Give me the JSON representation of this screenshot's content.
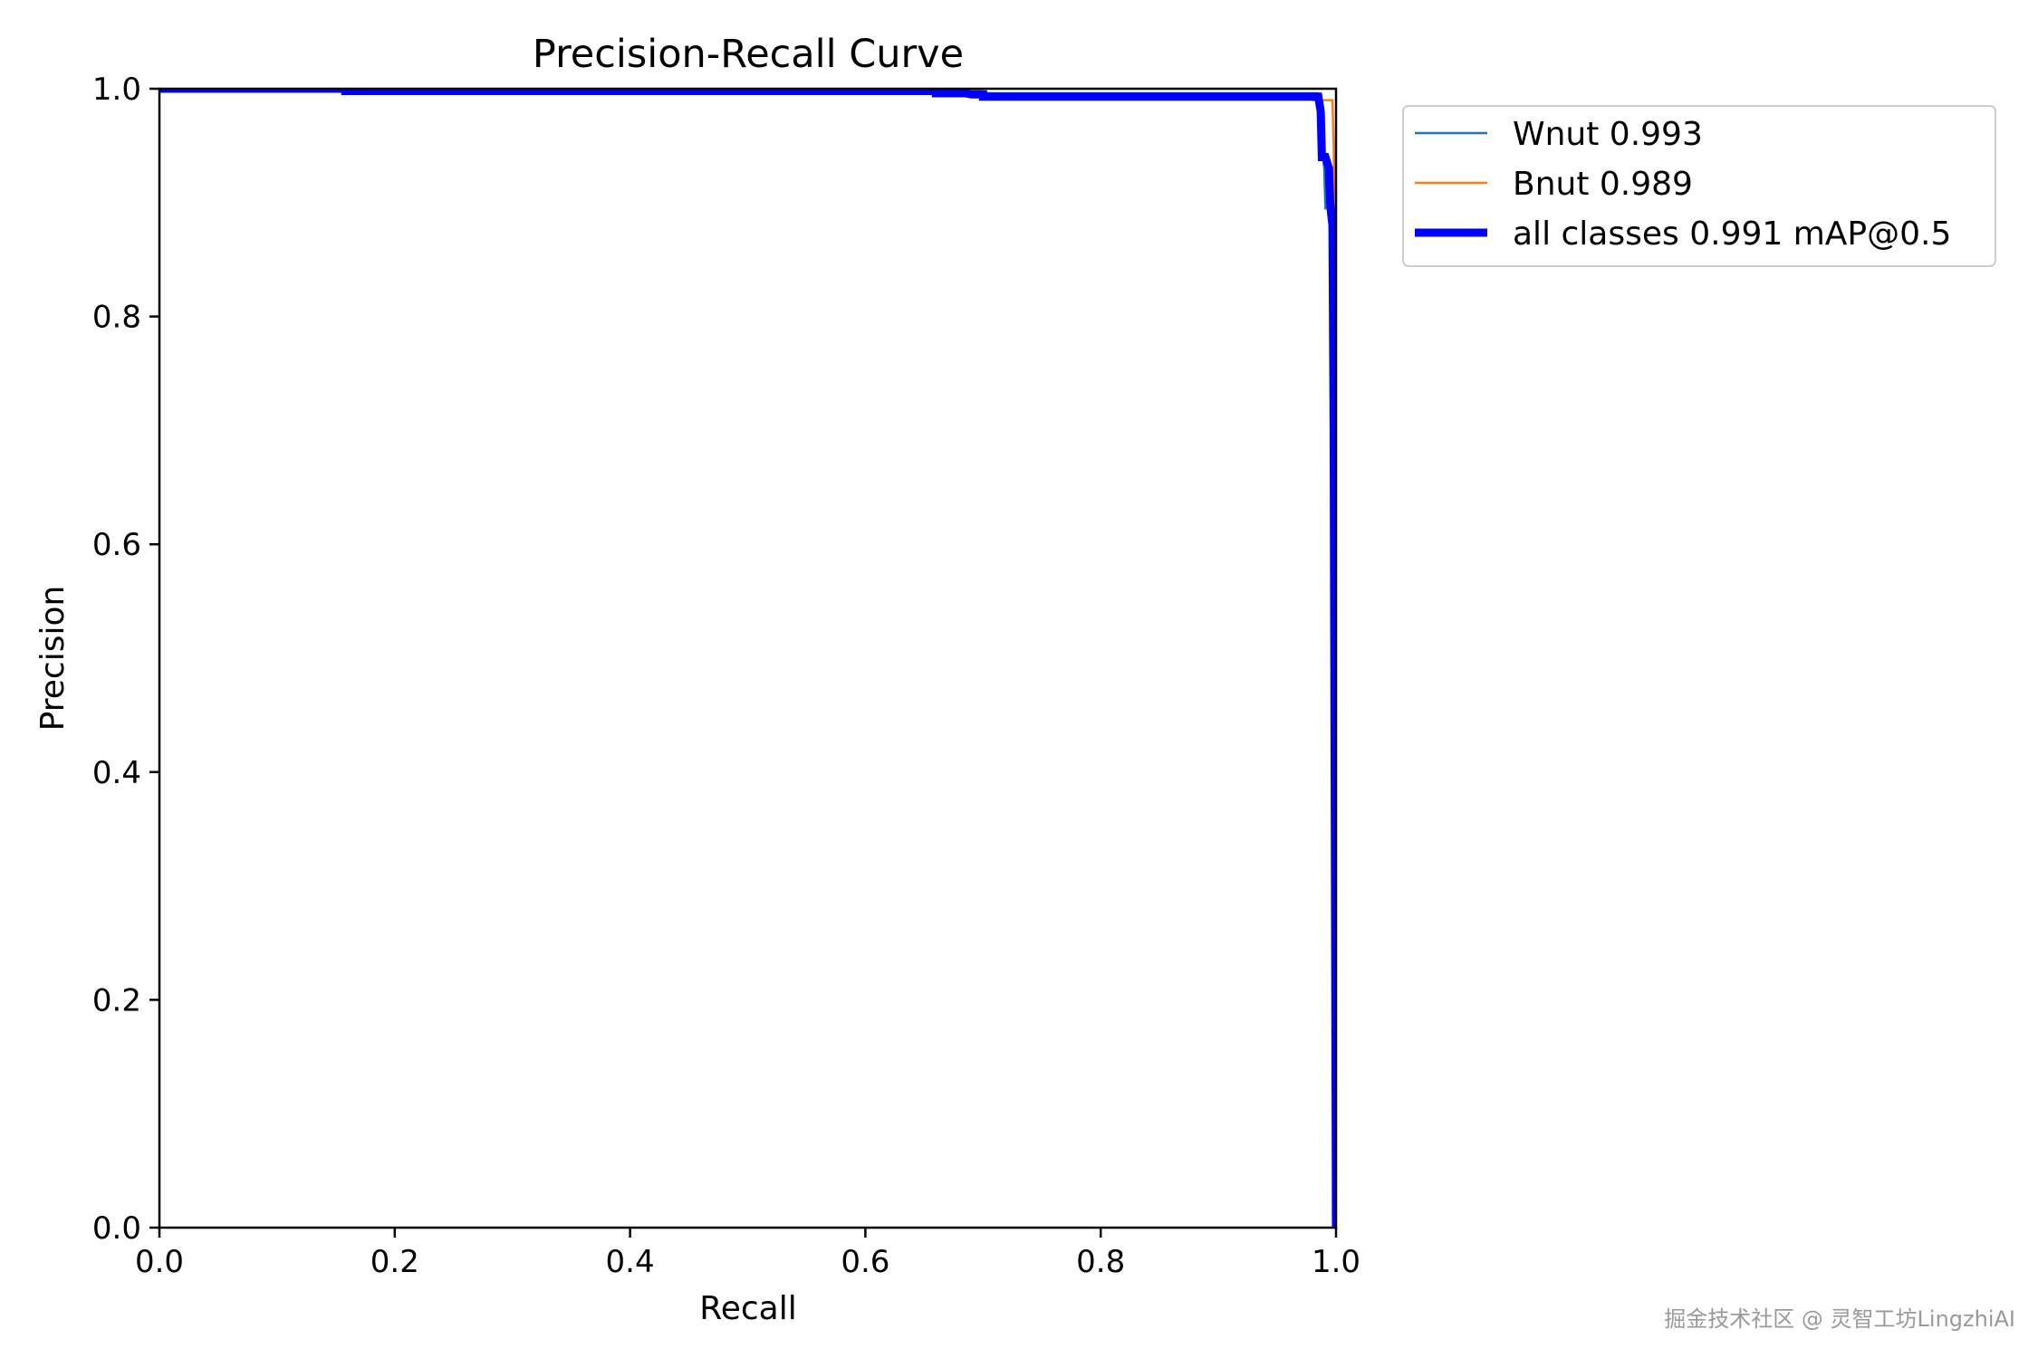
{
  "chart_data": {
    "type": "line",
    "title": "Precision-Recall Curve",
    "xlabel": "Recall",
    "ylabel": "Precision",
    "xlim": [
      0,
      1
    ],
    "ylim": [
      0,
      1
    ],
    "grid": false,
    "legend_position": "outside-top-right",
    "x_ticks": [
      "0.0",
      "0.2",
      "0.4",
      "0.6",
      "0.8",
      "1.0"
    ],
    "y_ticks": [
      "0.0",
      "0.2",
      "0.4",
      "0.6",
      "0.8",
      "1.0"
    ],
    "series": [
      {
        "name": "Wnut 0.993",
        "color": "#1f77b4",
        "style": "thin",
        "points": [
          [
            0,
            1.0
          ],
          [
            0.16,
            1.0
          ],
          [
            0.16,
            0.998
          ],
          [
            0.7,
            0.998
          ],
          [
            0.7,
            0.996
          ],
          [
            0.985,
            0.996
          ],
          [
            0.987,
            0.99
          ],
          [
            0.988,
            0.95
          ],
          [
            0.99,
            0.93
          ],
          [
            0.991,
            0.895
          ],
          [
            0.993,
            0.895
          ],
          [
            0.994,
            0.885
          ],
          [
            0.996,
            0.88
          ],
          [
            0.997,
            0.79
          ],
          [
            0.999,
            0.5
          ],
          [
            1.0,
            0.0
          ]
        ]
      },
      {
        "name": "Bnut 0.989",
        "color": "#ff7f0e",
        "style": "thin",
        "points": [
          [
            0,
            1.0
          ],
          [
            0.16,
            1.0
          ],
          [
            0.16,
            0.998
          ],
          [
            0.7,
            0.998
          ],
          [
            0.7,
            0.994
          ],
          [
            0.98,
            0.994
          ],
          [
            0.98,
            0.99
          ],
          [
            0.997,
            0.99
          ],
          [
            0.998,
            0.95
          ],
          [
            0.999,
            0.85
          ],
          [
            1.0,
            0.0
          ]
        ]
      },
      {
        "name": "all classes 0.991 mAP@0.5",
        "color": "#0000ff",
        "style": "thick",
        "points": [
          [
            0,
            1.0
          ],
          [
            0.158,
            1.0
          ],
          [
            0.158,
            0.998
          ],
          [
            0.66,
            0.998
          ],
          [
            0.66,
            0.996
          ],
          [
            0.685,
            0.996
          ],
          [
            0.69,
            0.995
          ],
          [
            0.7,
            0.995
          ],
          [
            0.7,
            0.993
          ],
          [
            0.985,
            0.993
          ],
          [
            0.987,
            0.98
          ],
          [
            0.988,
            0.94
          ],
          [
            0.991,
            0.94
          ],
          [
            0.994,
            0.93
          ],
          [
            0.995,
            0.9
          ],
          [
            0.997,
            0.88
          ],
          [
            0.998,
            0.7
          ],
          [
            1.0,
            0.0
          ]
        ]
      }
    ]
  },
  "watermark": "掘金技术社区 @ 灵智工坊LingzhiAI"
}
